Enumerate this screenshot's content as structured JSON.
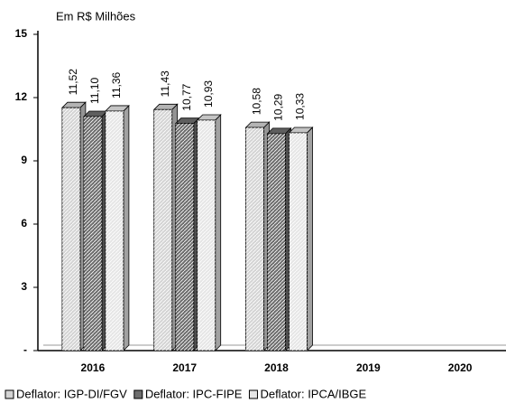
{
  "chart_data": {
    "type": "bar3d",
    "subtitle": "Em R$ Milhões",
    "categories": [
      "2016",
      "2017",
      "2018",
      "2019",
      "2020"
    ],
    "series": [
      {
        "name": "Deflator: IGP-DI/FGV",
        "color": "#d4d4d4",
        "values": [
          11.52,
          11.43,
          10.58,
          null,
          null
        ],
        "value_labels": [
          "11,52",
          "11,43",
          "10,58",
          null,
          null
        ]
      },
      {
        "name": "Deflator: IPC-FIPE",
        "color": "#6e6e6e",
        "values": [
          11.1,
          10.77,
          10.29,
          null,
          null
        ],
        "value_labels": [
          "11,10",
          "10,77",
          "10,29",
          null,
          null
        ]
      },
      {
        "name": "Deflator: IPCA/IBGE",
        "color": "#e6e6e6",
        "values": [
          11.36,
          10.93,
          10.33,
          null,
          null
        ],
        "value_labels": [
          "11,36",
          "10,93",
          "10,33",
          null,
          null
        ]
      }
    ],
    "ylim": [
      0,
      15
    ],
    "yticks": [
      {
        "value": 0,
        "label": "-"
      },
      3,
      6,
      9,
      12,
      15
    ]
  }
}
